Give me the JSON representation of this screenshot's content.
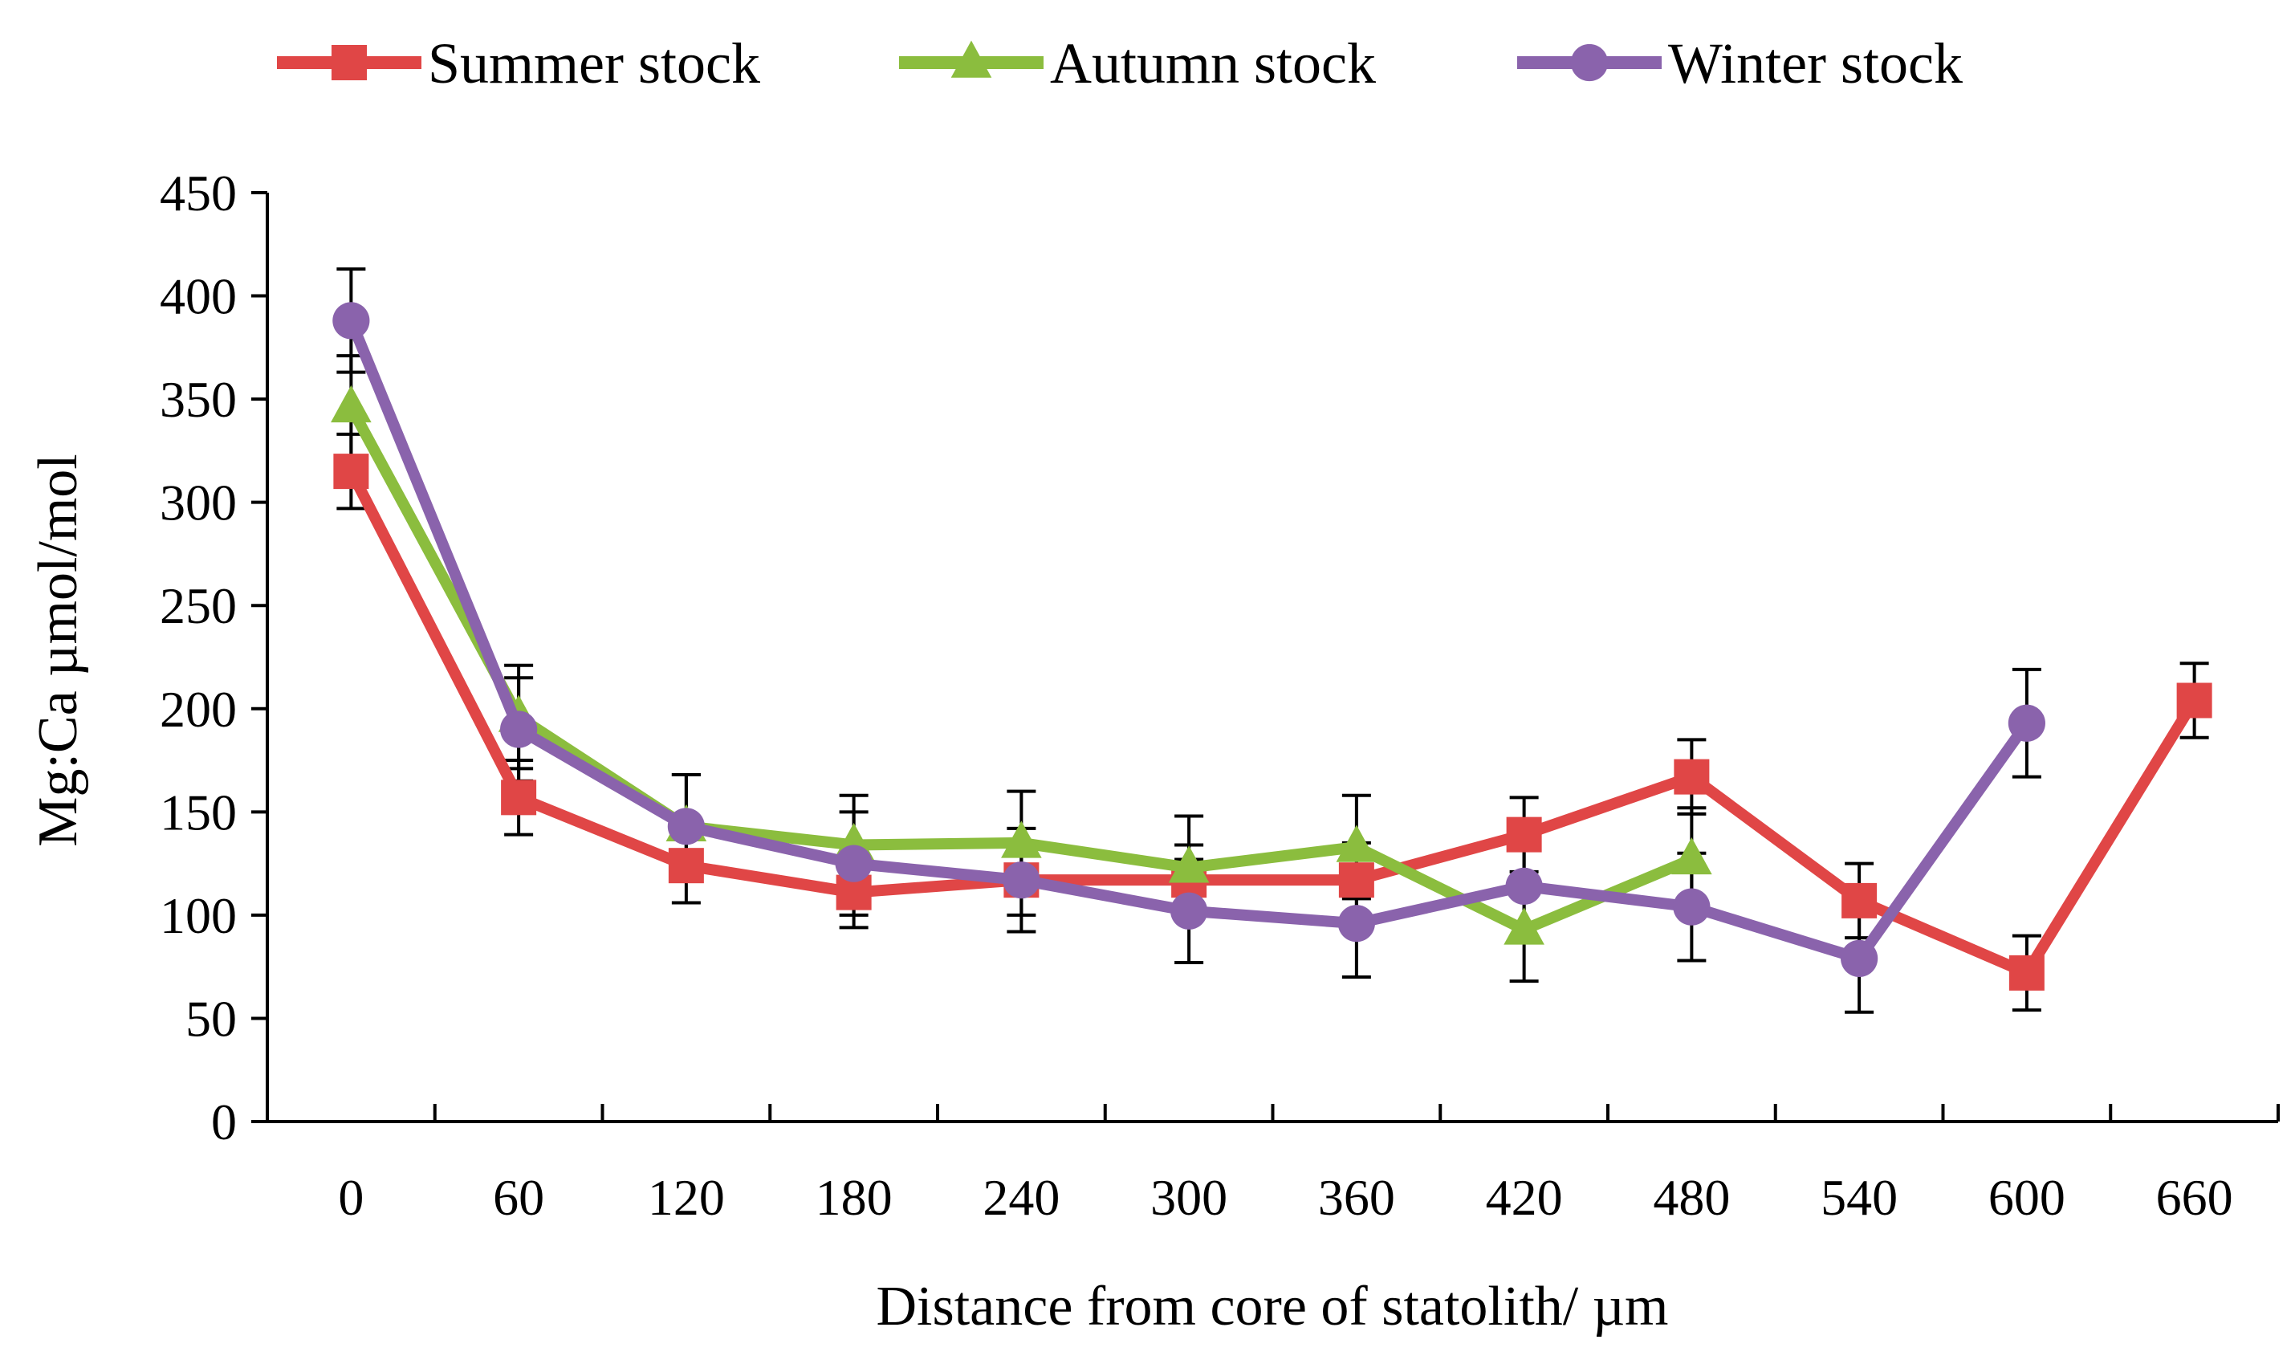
{
  "chart_data": {
    "type": "line",
    "title": "",
    "xlabel": "Distance from core of statolith/ µm",
    "ylabel": "Mg:Ca µmol/mol",
    "categories": [
      "0",
      "60",
      "120",
      "180",
      "240",
      "300",
      "360",
      "420",
      "480",
      "540",
      "600",
      "660"
    ],
    "ylim": [
      0,
      450
    ],
    "yticks": [
      "0",
      "50",
      "100",
      "150",
      "200",
      "250",
      "300",
      "350",
      "400",
      "450"
    ],
    "grid": false,
    "legend_position": "top",
    "series": [
      {
        "name": "Summer stock",
        "color": "#e04646",
        "marker": "square",
        "values": [
          315,
          157,
          124,
          111,
          117,
          117,
          117,
          139,
          167,
          107,
          72,
          204
        ],
        "errors": [
          18,
          18,
          18,
          17,
          17,
          17,
          18,
          18,
          18,
          18,
          18,
          18
        ]
      },
      {
        "name": "Autumn stock",
        "color": "#8bbd3e",
        "marker": "triangle",
        "values": [
          346,
          196,
          143,
          134,
          135,
          123,
          133,
          93,
          127,
          null,
          null,
          null
        ],
        "errors": [
          25,
          25,
          25,
          24,
          25,
          25,
          25,
          25,
          25,
          null,
          null,
          null
        ]
      },
      {
        "name": "Winter stock",
        "color": "#8a63ac",
        "marker": "circle",
        "values": [
          388,
          190,
          143,
          125,
          117,
          102,
          96,
          114,
          104,
          79,
          193,
          null
        ],
        "errors": [
          25,
          25,
          25,
          25,
          25,
          25,
          26,
          25,
          26,
          26,
          26,
          null
        ]
      }
    ]
  }
}
